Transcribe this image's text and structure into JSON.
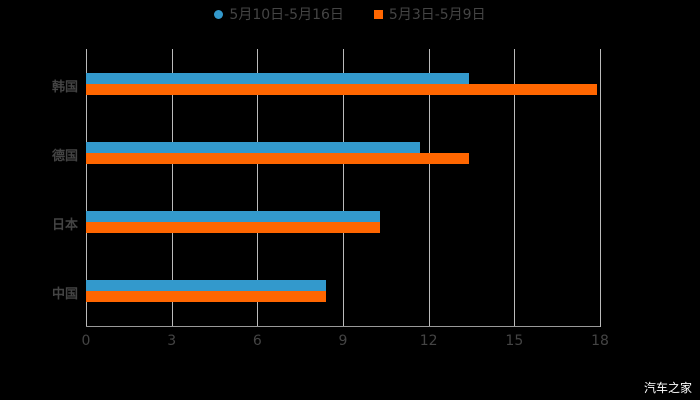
{
  "legend": [
    {
      "label": "5月10日-5月16日",
      "color": "#3399cc",
      "shape": "circle"
    },
    {
      "label": "5月3日-5月9日",
      "color": "#ff6600",
      "shape": "square"
    }
  ],
  "watermark": "汽车之家",
  "chart_data": {
    "type": "bar",
    "orientation": "horizontal",
    "categories": [
      "韩国",
      "德国",
      "日本",
      "中国"
    ],
    "series": [
      {
        "name": "5月10日-5月16日",
        "color": "#3399cc",
        "values": [
          13.4,
          11.7,
          10.3,
          8.4
        ]
      },
      {
        "name": "5月3日-5月9日",
        "color": "#ff6600",
        "values": [
          17.9,
          13.4,
          10.3,
          8.4
        ]
      }
    ],
    "xticks": [
      "0",
      "3",
      "6",
      "9",
      "12",
      "15",
      "18"
    ],
    "xlim": [
      0,
      18
    ],
    "grid": true,
    "legend_position": "top",
    "title": "",
    "xlabel": "",
    "ylabel": ""
  }
}
